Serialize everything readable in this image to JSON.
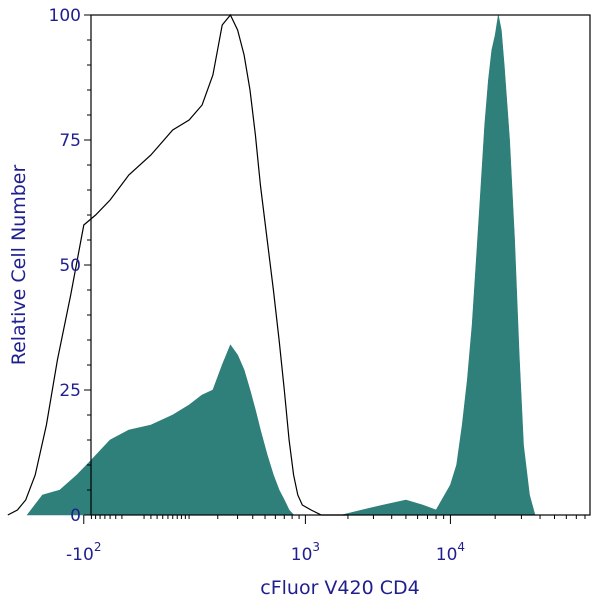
{
  "chart_data": {
    "type": "area",
    "title": "",
    "xlabel": "cFluor V420 CD4",
    "ylabel": "Relative Cell Number",
    "x_scale": "biexponential",
    "ylim": [
      0,
      100
    ],
    "y_ticks": [
      "0",
      "25",
      "50",
      "75",
      "100"
    ],
    "x_tick_labels": [
      {
        "base": "-10",
        "exp": "2",
        "value": -100
      },
      {
        "base": "10",
        "exp": "3",
        "value": 1000
      },
      {
        "base": "10",
        "exp": "4",
        "value": 10000
      }
    ],
    "grid": false,
    "legend": "none",
    "colors": {
      "filled": "#2f7f7a",
      "outline": "#000000",
      "axis": "#000000",
      "text": "#1f1f8f"
    },
    "series": [
      {
        "style": "outline",
        "x": [
          -500,
          -420,
          -360,
          -300,
          -240,
          -190,
          -140,
          -100,
          -70,
          -40,
          -10,
          20,
          60,
          100,
          140,
          180,
          220,
          260,
          300,
          340,
          380,
          420,
          460,
          520,
          580,
          640,
          700,
          760,
          820,
          880,
          950,
          1100,
          1300,
          1600,
          2000
        ],
        "y": [
          0,
          1,
          3,
          8,
          18,
          31,
          44,
          58,
          60,
          63,
          68,
          72,
          77,
          79,
          82,
          88,
          98,
          100,
          97,
          92,
          85,
          76,
          66,
          55,
          45,
          35,
          25,
          15,
          8,
          4,
          2,
          1,
          0,
          0,
          0
        ]
      },
      {
        "style": "filled",
        "x": [
          -350,
          -260,
          -180,
          -120,
          -80,
          -40,
          -10,
          20,
          60,
          100,
          140,
          180,
          220,
          260,
          300,
          340,
          380,
          420,
          460,
          520,
          580,
          640,
          700,
          760,
          820,
          880,
          950,
          1200,
          1800,
          2500,
          3500,
          5000,
          6500,
          8000,
          10000,
          11000,
          12000,
          13000,
          14000,
          15000,
          16000,
          17000,
          18000,
          19000,
          20000,
          21000,
          22000,
          23000,
          25000,
          27000,
          29000,
          31000,
          34000,
          37000
        ],
        "y": [
          0,
          4,
          5,
          8,
          11,
          15,
          17,
          18,
          20,
          22,
          24,
          25,
          30,
          34,
          32,
          29,
          25,
          21,
          17,
          12,
          8,
          5,
          3,
          1,
          0,
          0,
          0,
          0,
          0,
          1,
          2,
          3,
          2,
          1,
          6,
          10,
          18,
          27,
          38,
          52,
          65,
          78,
          87,
          93,
          96,
          100,
          97,
          90,
          75,
          55,
          32,
          14,
          4,
          0
        ]
      }
    ]
  }
}
